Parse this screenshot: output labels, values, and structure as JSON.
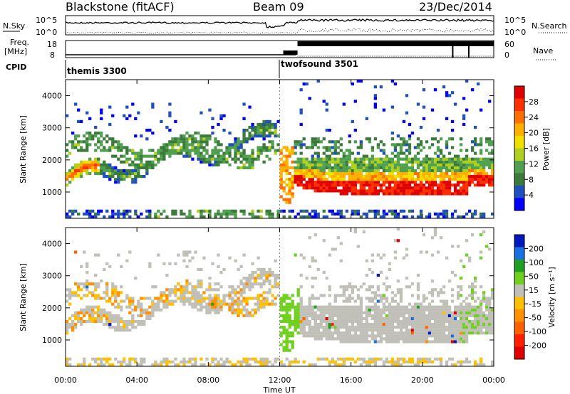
{
  "header": {
    "station": "Blackstone (fitACF)",
    "beam": "Beam 09",
    "date": "23/Dec/2014"
  },
  "top_panels": {
    "nsky_label": "N.Sky",
    "nsky_ticks": [
      "10^5",
      "10^0"
    ],
    "nsearch_label": "N.Search",
    "nsearch_ticks": [
      "10^5",
      "10^0"
    ],
    "freq_label": "Freq.",
    "freq_unit": "[MHz]",
    "freq_ticks": [
      "18",
      "8"
    ],
    "nave_label": "Nave",
    "nave_ticks": [
      "60",
      "0"
    ],
    "cpid_label": "CPID",
    "cpid_segments": [
      {
        "name": "themis 3300",
        "start_h": 0
      },
      {
        "name": "twofsound 3501",
        "start_h": 12
      }
    ]
  },
  "chart_data": [
    {
      "type": "heatmap",
      "panel": "power",
      "ylabel": "Slant Range [km]",
      "yticks": [
        "1000",
        "2000",
        "3000",
        "4000"
      ],
      "ylim": [
        180,
        4500
      ],
      "xlim": [
        0,
        24
      ],
      "colorbar_label": "Power [dB]",
      "colorbar_ticks": [
        "4",
        "8",
        "12",
        "16",
        "20",
        "24",
        "28"
      ],
      "colorbar_colors": [
        "#0000ff",
        "#2050c0",
        "#3a7a3a",
        "#50a050",
        "#b0d020",
        "#f0e000",
        "#ffb000",
        "#ff7000",
        "#ff3000",
        "#e00000"
      ]
    },
    {
      "type": "heatmap",
      "panel": "velocity",
      "ylabel": "Slant Range [km]",
      "yticks": [
        "1000",
        "2000",
        "3000",
        "4000"
      ],
      "ylim": [
        180,
        4500
      ],
      "xlim": [
        0,
        24
      ],
      "colorbar_label": "Velocity [m s⁻¹]",
      "colorbar_ticks": [
        "200",
        "100",
        "50",
        "15",
        "-15",
        "-50",
        "-100",
        "-200"
      ],
      "colorbar_colors": [
        "#0018c0",
        "#1a70e0",
        "#20a020",
        "#70d020",
        "#c0c0b8",
        "#ffc000",
        "#ff9000",
        "#ff6000",
        "#ff2000",
        "#e00000"
      ]
    }
  ],
  "xaxis": {
    "ticks": [
      "00:00",
      "04:00",
      "08:00",
      "12:00",
      "16:00",
      "20:00",
      "00:00"
    ],
    "label": "Time UT"
  }
}
